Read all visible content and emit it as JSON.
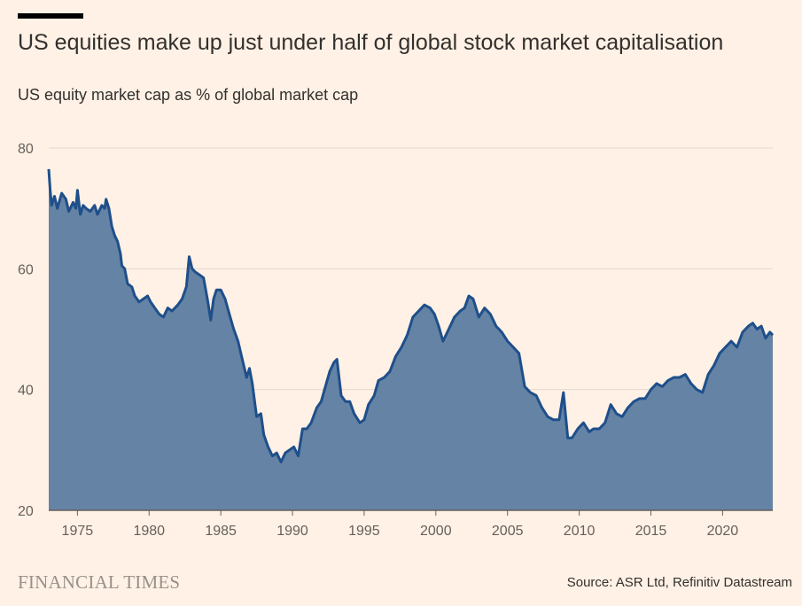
{
  "header": {
    "title": "US equities make up just under half of global stock market capitalisation",
    "subtitle": "US equity market cap as % of global market cap"
  },
  "footer": {
    "brand": "FINANCIAL TIMES",
    "source": "Source: ASR Ltd, Refinitiv Datastream"
  },
  "colors": {
    "background": "#fff1e5",
    "area_fill": "#6583a5",
    "line": "#1e4f8a",
    "grid": "#e3d9cf",
    "axis": "#66605c"
  },
  "chart_data": {
    "type": "area",
    "title": "US equities make up just under half of global stock market capitalisation",
    "subtitle": "US equity market cap as % of global market cap",
    "xlabel": "",
    "ylabel": "",
    "xlim": [
      1973.0,
      2023.5
    ],
    "ylim": [
      20,
      80
    ],
    "y_ticks": [
      20,
      40,
      60,
      80
    ],
    "x_ticks": [
      1975,
      1980,
      1985,
      1990,
      1995,
      2000,
      2005,
      2010,
      2015,
      2020
    ],
    "grid": "horizontal",
    "legend": "none",
    "series": [
      {
        "x": [
          1973.0,
          1973.1,
          1973.2,
          1973.4,
          1973.6,
          1973.9,
          1974.2,
          1974.4,
          1974.7,
          1974.9,
          1975.0,
          1975.2,
          1975.4,
          1975.6,
          1975.9,
          1976.2,
          1976.4,
          1976.7,
          1976.9,
          1977.0,
          1977.2,
          1977.4,
          1977.6,
          1977.8,
          1978.0,
          1978.1,
          1978.3,
          1978.5,
          1978.8,
          1979.0,
          1979.3,
          1979.6,
          1979.9,
          1980.1,
          1980.4,
          1980.7,
          1981.0,
          1981.3,
          1981.6,
          1982.0,
          1982.3,
          1982.6,
          1982.8,
          1983.0,
          1983.2,
          1983.5,
          1983.8,
          1984.1,
          1984.3,
          1984.5,
          1984.7,
          1985.0,
          1985.3,
          1985.6,
          1985.9,
          1986.2,
          1986.5,
          1986.8,
          1987.0,
          1987.2,
          1987.5,
          1987.8,
          1988.0,
          1988.3,
          1988.6,
          1988.9,
          1989.2,
          1989.5,
          1989.8,
          1990.1,
          1990.4,
          1990.7,
          1991.0,
          1991.3,
          1991.7,
          1992.0,
          1992.3,
          1992.6,
          1992.9,
          1993.1,
          1993.4,
          1993.7,
          1994.0,
          1994.3,
          1994.7,
          1995.0,
          1995.3,
          1995.7,
          1996.0,
          1996.4,
          1996.8,
          1997.2,
          1997.6,
          1998.0,
          1998.4,
          1998.8,
          1999.2,
          1999.6,
          1999.9,
          2000.2,
          2000.5,
          2000.9,
          2001.3,
          2001.7,
          2002.0,
          2002.3,
          2002.6,
          2003.0,
          2003.4,
          2003.8,
          2004.2,
          2004.6,
          2005.0,
          2005.4,
          2005.8,
          2006.2,
          2006.6,
          2007.0,
          2007.4,
          2007.8,
          2008.2,
          2008.6,
          2008.9,
          2009.2,
          2009.5,
          2009.9,
          2010.3,
          2010.7,
          2011.0,
          2011.4,
          2011.8,
          2012.2,
          2012.6,
          2013.0,
          2013.4,
          2013.8,
          2014.2,
          2014.6,
          2015.0,
          2015.4,
          2015.8,
          2016.2,
          2016.6,
          2017.0,
          2017.4,
          2017.8,
          2018.2,
          2018.6,
          2019.0,
          2019.4,
          2019.8,
          2020.2,
          2020.6,
          2021.0,
          2021.4,
          2021.8,
          2022.1,
          2022.4,
          2022.7,
          2023.0,
          2023.3,
          2023.5
        ],
        "values": [
          76.5,
          73.0,
          70.5,
          72.0,
          70.0,
          72.5,
          71.5,
          69.5,
          71.0,
          70.0,
          73.0,
          69.0,
          70.5,
          70.0,
          69.5,
          70.5,
          69.0,
          70.5,
          70.0,
          71.5,
          70.0,
          67.0,
          65.5,
          64.5,
          62.5,
          60.5,
          60.0,
          57.5,
          57.0,
          55.5,
          54.5,
          55.0,
          55.5,
          54.5,
          53.5,
          52.5,
          52.0,
          53.5,
          53.0,
          54.0,
          55.0,
          57.0,
          62.0,
          60.0,
          59.5,
          59.0,
          58.5,
          54.5,
          51.5,
          55.0,
          56.5,
          56.5,
          55.0,
          52.5,
          50.0,
          48.0,
          45.0,
          42.0,
          43.5,
          41.0,
          35.5,
          36.0,
          32.5,
          30.5,
          29.0,
          29.5,
          28.0,
          29.5,
          30.0,
          30.5,
          29.0,
          33.5,
          33.5,
          34.5,
          37.0,
          38.0,
          40.5,
          43.0,
          44.5,
          45.0,
          39.0,
          38.0,
          38.0,
          36.0,
          34.5,
          35.0,
          37.5,
          39.0,
          41.5,
          42.0,
          43.0,
          45.5,
          47.0,
          49.0,
          52.0,
          53.0,
          54.0,
          53.5,
          52.5,
          50.5,
          48.0,
          50.0,
          52.0,
          53.0,
          53.5,
          55.5,
          55.0,
          52.0,
          53.5,
          52.5,
          50.5,
          49.5,
          48.0,
          47.0,
          46.0,
          40.5,
          39.5,
          39.0,
          37.0,
          35.5,
          35.0,
          35.0,
          39.5,
          32.0,
          32.0,
          33.5,
          34.5,
          33.0,
          33.5,
          33.5,
          34.5,
          37.5,
          36.0,
          35.5,
          37.0,
          38.0,
          38.5,
          38.5,
          40.0,
          41.0,
          40.5,
          41.5,
          42.0,
          42.0,
          42.5,
          41.0,
          40.0,
          39.5,
          42.5,
          44.0,
          46.0,
          47.0,
          48.0,
          47.0,
          49.5,
          50.5,
          51.0,
          50.0,
          50.5,
          48.5,
          49.5,
          49.0
        ]
      }
    ]
  }
}
